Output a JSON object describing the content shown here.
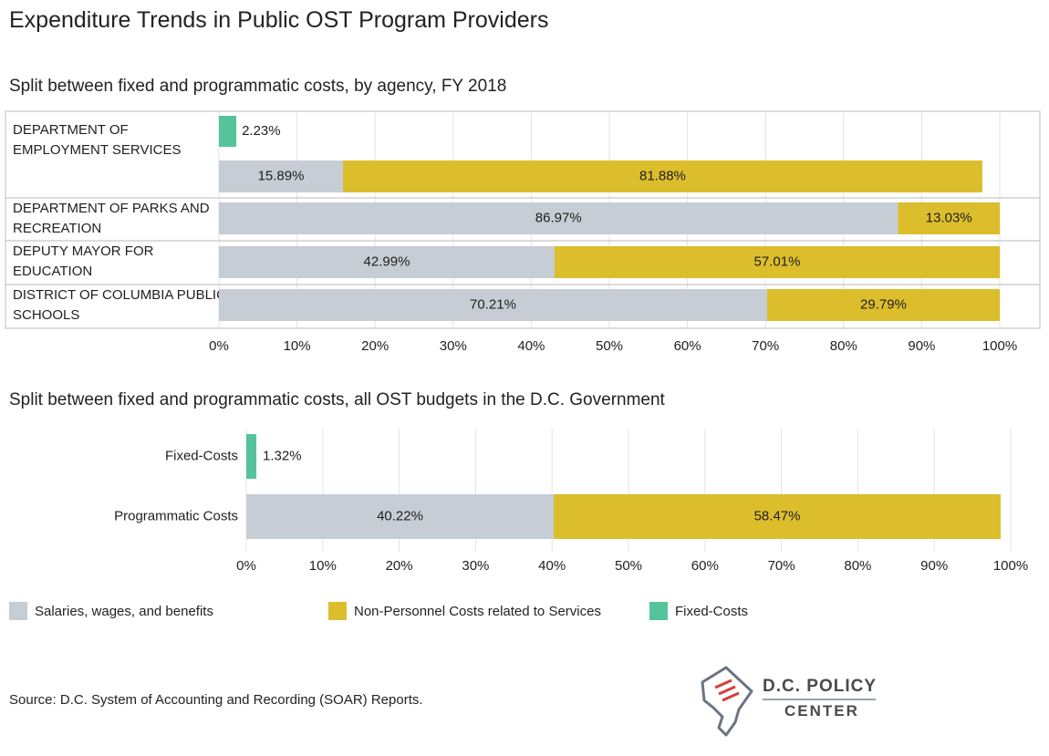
{
  "title": "Expenditure Trends in Public OST Program Providers",
  "colors": {
    "salaries": "#c6cdd4",
    "nonpersonnel": "#dcbd2c",
    "fixed": "#56c49b",
    "grid": "#e3e3e3",
    "border": "#c8c8c8"
  },
  "chart_data": [
    {
      "type": "bar",
      "orientation": "horizontal",
      "stacked": true,
      "title": "Split between fixed and programmatic costs, by agency, FY 2018",
      "categories": [
        "DEPARTMENT OF EMPLOYMENT SERVICES",
        "DEPARTMENT OF PARKS AND RECREATION",
        "DEPUTY MAYOR FOR EDUCATION",
        "DISTRICT OF COLUMBIA PUBLIC SCHOOLS"
      ],
      "category_lines": [
        [
          "DEPARTMENT OF",
          "EMPLOYMENT SERVICES"
        ],
        [
          "DEPARTMENT OF PARKS AND",
          "RECREATION"
        ],
        [
          "DEPUTY MAYOR FOR",
          "EDUCATION"
        ],
        [
          "DISTRICT OF COLUMBIA PUBLIC",
          "SCHOOLS"
        ]
      ],
      "series": [
        {
          "key": "fixed",
          "values": [
            2.23,
            null,
            null,
            null
          ],
          "labels": [
            "2.23%",
            null,
            null,
            null
          ]
        },
        {
          "key": "salaries",
          "values": [
            15.89,
            86.97,
            42.99,
            70.21
          ],
          "labels": [
            "15.89%",
            "86.97%",
            "42.99%",
            "70.21%"
          ]
        },
        {
          "key": "nonpersonnel",
          "values": [
            81.88,
            13.03,
            57.01,
            29.79
          ],
          "labels": [
            "81.88%",
            "13.03%",
            "57.01%",
            "29.79%"
          ]
        }
      ],
      "xlim": [
        0,
        100
      ],
      "x_ticks": [
        "0%",
        "10%",
        "20%",
        "30%",
        "40%",
        "50%",
        "60%",
        "70%",
        "80%",
        "90%",
        "100%"
      ],
      "grid": true
    },
    {
      "type": "bar",
      "orientation": "horizontal",
      "stacked": true,
      "title": "Split between fixed and programmatic costs, all OST budgets in the D.C. Government",
      "categories": [
        "Fixed-Costs",
        "Programmatic Costs"
      ],
      "series": [
        {
          "key": "fixed",
          "values": [
            1.32,
            null
          ],
          "labels": [
            "1.32%",
            null
          ]
        },
        {
          "key": "salaries",
          "values": [
            null,
            40.22
          ],
          "labels": [
            null,
            "40.22%"
          ]
        },
        {
          "key": "nonpersonnel",
          "values": [
            null,
            58.47
          ],
          "labels": [
            null,
            "58.47%"
          ]
        }
      ],
      "xlim": [
        0,
        100
      ],
      "x_ticks": [
        "0%",
        "10%",
        "20%",
        "30%",
        "40%",
        "50%",
        "60%",
        "70%",
        "80%",
        "90%",
        "100%"
      ],
      "grid": true
    }
  ],
  "legend": {
    "placement": "bottom",
    "items": [
      {
        "key": "salaries",
        "label": "Salaries, wages, and benefits"
      },
      {
        "key": "nonpersonnel",
        "label": "Non-Personnel Costs related to Services"
      },
      {
        "key": "fixed",
        "label": "Fixed-Costs"
      }
    ]
  },
  "source": "Source: D.C. System of Accounting and Recording (SOAR) Reports.",
  "logo": {
    "line1": "D.C. POLICY",
    "line2": "CENTER"
  }
}
